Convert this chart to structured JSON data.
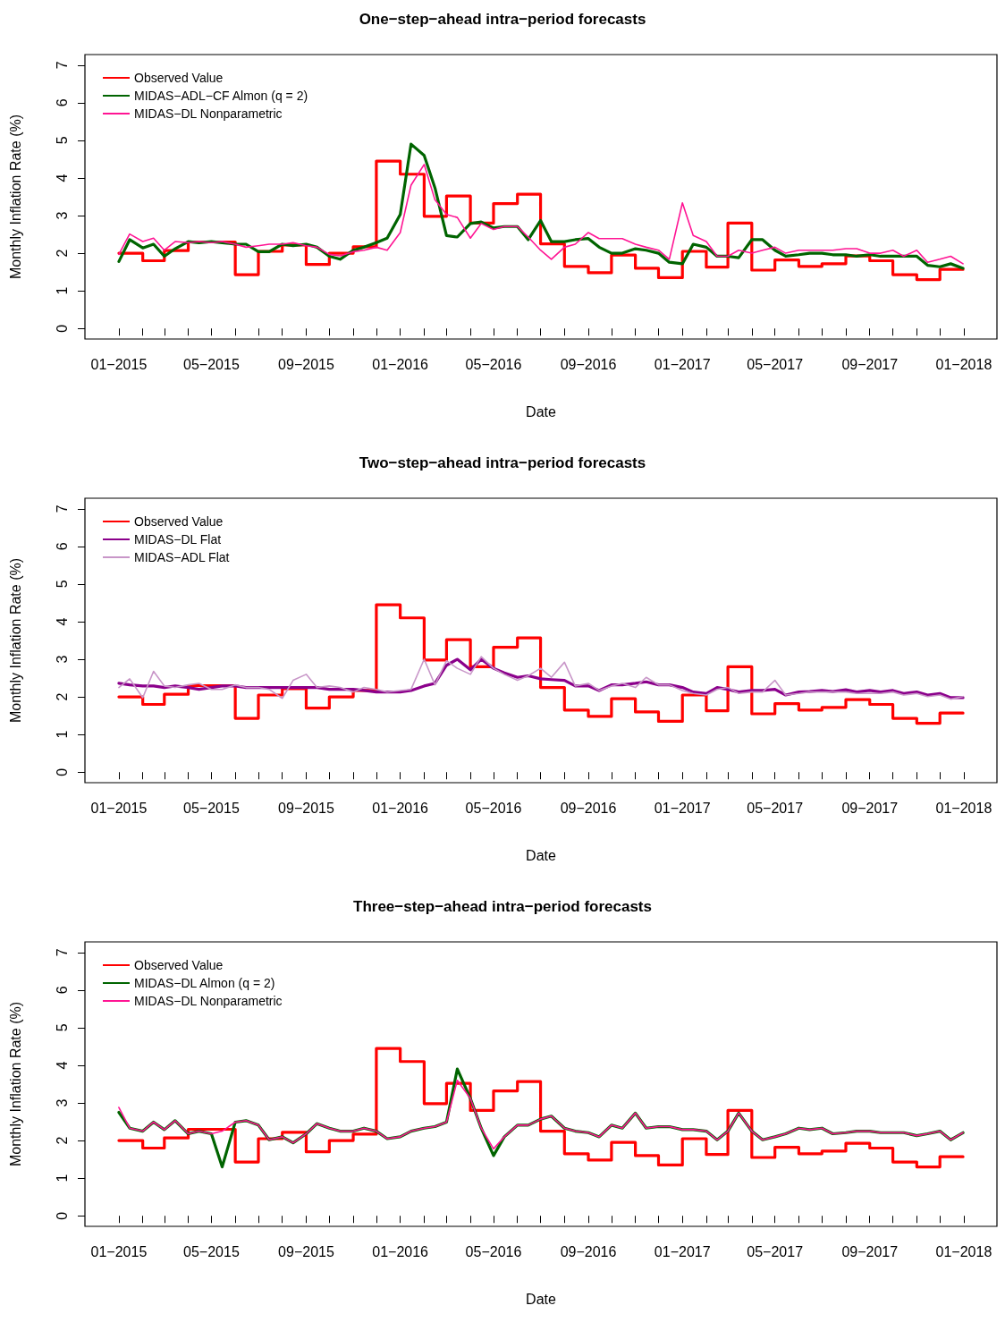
{
  "chart_data": [
    {
      "type": "line",
      "title": "One−step−ahead intra−period forecasts",
      "xlabel": "Date",
      "ylabel": "Monthly Inflation Rate (%)",
      "legend": "top left",
      "xlim": [
        "2014-11-18",
        "2018-02-13"
      ],
      "ylim": [
        -0.28,
        7.28
      ],
      "yticks": [
        0,
        1,
        2,
        3,
        4,
        5,
        6,
        7
      ],
      "xticks": [
        {
          "value": "2015-01-01",
          "label": "01−2015"
        },
        {
          "value": "2015-02-01",
          "label": null
        },
        {
          "value": "2015-03-01",
          "label": null
        },
        {
          "value": "2015-04-01",
          "label": null
        },
        {
          "value": "2015-05-01",
          "label": "05−2015"
        },
        {
          "value": "2015-06-01",
          "label": null
        },
        {
          "value": "2015-07-01",
          "label": null
        },
        {
          "value": "2015-08-01",
          "label": null
        },
        {
          "value": "2015-09-01",
          "label": "09−2015"
        },
        {
          "value": "2015-10-01",
          "label": null
        },
        {
          "value": "2015-11-01",
          "label": null
        },
        {
          "value": "2015-12-01",
          "label": null
        },
        {
          "value": "2016-01-01",
          "label": "01−2016"
        },
        {
          "value": "2016-02-01",
          "label": null
        },
        {
          "value": "2016-03-01",
          "label": null
        },
        {
          "value": "2016-04-01",
          "label": null
        },
        {
          "value": "2016-05-01",
          "label": "05−2016"
        },
        {
          "value": "2016-06-01",
          "label": null
        },
        {
          "value": "2016-07-01",
          "label": null
        },
        {
          "value": "2016-08-01",
          "label": null
        },
        {
          "value": "2016-09-01",
          "label": "09−2016"
        },
        {
          "value": "2016-10-01",
          "label": null
        },
        {
          "value": "2016-11-01",
          "label": null
        },
        {
          "value": "2016-12-01",
          "label": null
        },
        {
          "value": "2017-01-01",
          "label": "01−2017"
        },
        {
          "value": "2017-02-01",
          "label": null
        },
        {
          "value": "2017-03-01",
          "label": null
        },
        {
          "value": "2017-04-01",
          "label": null
        },
        {
          "value": "2017-05-01",
          "label": "05−2017"
        },
        {
          "value": "2017-06-01",
          "label": null
        },
        {
          "value": "2017-07-01",
          "label": null
        },
        {
          "value": "2017-08-01",
          "label": null
        },
        {
          "value": "2017-09-01",
          "label": "09−2017"
        },
        {
          "value": "2017-10-01",
          "label": null
        },
        {
          "value": "2017-11-01",
          "label": null
        },
        {
          "value": "2017-12-01",
          "label": null
        },
        {
          "value": "2018-01-01",
          "label": "01−2018"
        }
      ],
      "x": [
        "2015-01-01",
        "2015-01-15",
        "2015-02-01",
        "2015-02-15",
        "2015-03-01",
        "2015-03-15",
        "2015-04-01",
        "2015-04-15",
        "2015-05-01",
        "2015-05-15",
        "2015-06-01",
        "2015-06-15",
        "2015-07-01",
        "2015-07-15",
        "2015-08-01",
        "2015-08-15",
        "2015-09-01",
        "2015-09-15",
        "2015-10-01",
        "2015-10-15",
        "2015-11-01",
        "2015-11-15",
        "2015-12-01",
        "2015-12-15",
        "2016-01-01",
        "2016-01-15",
        "2016-02-01",
        "2016-02-15",
        "2016-03-01",
        "2016-03-15",
        "2016-04-01",
        "2016-04-15",
        "2016-05-01",
        "2016-05-15",
        "2016-06-01",
        "2016-06-15",
        "2016-07-01",
        "2016-07-15",
        "2016-08-01",
        "2016-08-15",
        "2016-09-01",
        "2016-09-15",
        "2016-10-01",
        "2016-10-15",
        "2016-11-01",
        "2016-11-15",
        "2016-12-01",
        "2016-12-15",
        "2017-01-01",
        "2017-01-15",
        "2017-02-01",
        "2017-02-15",
        "2017-03-01",
        "2017-03-15",
        "2017-04-01",
        "2017-04-15",
        "2017-05-01",
        "2017-05-15",
        "2017-06-01",
        "2017-06-15",
        "2017-07-01",
        "2017-07-15",
        "2017-08-01",
        "2017-08-15",
        "2017-09-01",
        "2017-09-15",
        "2017-10-01",
        "2017-10-15",
        "2017-11-01",
        "2017-11-15",
        "2017-12-01",
        "2017-12-15",
        "2017-12-31"
      ],
      "series": [
        {
          "name": "Observed Value",
          "type": "step",
          "color": "#ff0000",
          "x": [
            "2015-01-01",
            "2015-02-01",
            "2015-03-01",
            "2015-04-01",
            "2015-05-01",
            "2015-06-01",
            "2015-07-01",
            "2015-08-01",
            "2015-09-01",
            "2015-10-01",
            "2015-11-01",
            "2015-12-01",
            "2016-01-01",
            "2016-02-01",
            "2016-03-01",
            "2016-04-01",
            "2016-05-01",
            "2016-06-01",
            "2016-07-01",
            "2016-08-01",
            "2016-09-01",
            "2016-10-01",
            "2016-11-01",
            "2016-12-01",
            "2017-01-01",
            "2017-02-01",
            "2017-03-01",
            "2017-04-01",
            "2017-05-01",
            "2017-06-01",
            "2017-07-01",
            "2017-08-01",
            "2017-09-01",
            "2017-10-01",
            "2017-11-01",
            "2017-12-01",
            "2017-12-31"
          ],
          "values": [
            2.0,
            1.8,
            2.07,
            2.3,
            2.3,
            1.43,
            2.05,
            2.22,
            1.7,
            2.0,
            2.17,
            4.45,
            4.1,
            2.98,
            3.52,
            2.8,
            3.32,
            3.57,
            2.25,
            1.65,
            1.48,
            1.95,
            1.6,
            1.35,
            2.05,
            1.63,
            2.8,
            1.55,
            1.82,
            1.65,
            1.72,
            1.93,
            1.8,
            1.43,
            1.3,
            1.57,
            1.57
          ]
        },
        {
          "name": "MIDAS−ADL−CF Almon (q = 2)",
          "color": "#006400",
          "values": [
            1.78,
            2.36,
            2.14,
            2.24,
            1.92,
            2.12,
            2.31,
            2.28,
            2.31,
            2.28,
            2.24,
            2.24,
            2.04,
            2.04,
            2.24,
            2.2,
            2.24,
            2.16,
            1.92,
            1.84,
            2.08,
            2.16,
            2.28,
            2.4,
            3.03,
            4.9,
            4.6,
            3.74,
            2.47,
            2.43,
            2.79,
            2.83,
            2.67,
            2.71,
            2.71,
            2.36,
            2.87,
            2.31,
            2.31,
            2.36,
            2.39,
            2.16,
            2.0,
            2.0,
            2.12,
            2.08,
            2.0,
            1.76,
            1.72,
            2.24,
            2.16,
            1.92,
            1.92,
            1.88,
            2.36,
            2.36,
            2.08,
            1.92,
            1.96,
            2.0,
            2.0,
            1.96,
            1.96,
            1.92,
            1.96,
            1.92,
            1.92,
            1.92,
            1.92,
            1.68,
            1.64,
            1.72,
            1.6
          ]
        },
        {
          "name": "MIDAS−DL Nonparametric",
          "color": "#ff1493",
          "values": [
            1.97,
            2.51,
            2.31,
            2.4,
            2.08,
            2.31,
            2.28,
            2.31,
            2.28,
            2.31,
            2.24,
            2.16,
            2.2,
            2.24,
            2.24,
            2.28,
            2.2,
            2.16,
            1.97,
            1.93,
            2.04,
            2.08,
            2.16,
            2.08,
            2.55,
            3.81,
            4.36,
            3.42,
            3.03,
            2.95,
            2.4,
            2.79,
            2.63,
            2.71,
            2.71,
            2.43,
            2.08,
            1.84,
            2.16,
            2.24,
            2.55,
            2.39,
            2.39,
            2.39,
            2.24,
            2.16,
            2.08,
            1.84,
            3.34,
            2.47,
            2.31,
            1.92,
            1.92,
            2.08,
            2.0,
            2.08,
            2.16,
            2.0,
            2.08,
            2.08,
            2.08,
            2.08,
            2.12,
            2.12,
            2.0,
            2.0,
            2.08,
            1.92,
            2.08,
            1.76,
            1.84,
            1.92,
            1.72
          ]
        }
      ]
    },
    {
      "type": "line",
      "title": "Two−step−ahead intra−period forecasts",
      "xlabel": "Date",
      "ylabel": "Monthly Inflation Rate (%)",
      "legend": "top left",
      "xlim": [
        "2014-11-18",
        "2018-02-13"
      ],
      "ylim": [
        -0.28,
        7.28
      ],
      "yticks": [
        0,
        1,
        2,
        3,
        4,
        5,
        6,
        7
      ],
      "xticks": [
        {
          "value": "2015-01-01",
          "label": "01−2015"
        },
        {
          "value": "2015-02-01",
          "label": null
        },
        {
          "value": "2015-03-01",
          "label": null
        },
        {
          "value": "2015-04-01",
          "label": null
        },
        {
          "value": "2015-05-01",
          "label": "05−2015"
        },
        {
          "value": "2015-06-01",
          "label": null
        },
        {
          "value": "2015-07-01",
          "label": null
        },
        {
          "value": "2015-08-01",
          "label": null
        },
        {
          "value": "2015-09-01",
          "label": "09−2015"
        },
        {
          "value": "2015-10-01",
          "label": null
        },
        {
          "value": "2015-11-01",
          "label": null
        },
        {
          "value": "2015-12-01",
          "label": null
        },
        {
          "value": "2016-01-01",
          "label": "01−2016"
        },
        {
          "value": "2016-02-01",
          "label": null
        },
        {
          "value": "2016-03-01",
          "label": null
        },
        {
          "value": "2016-04-01",
          "label": null
        },
        {
          "value": "2016-05-01",
          "label": "05−2016"
        },
        {
          "value": "2016-06-01",
          "label": null
        },
        {
          "value": "2016-07-01",
          "label": null
        },
        {
          "value": "2016-08-01",
          "label": null
        },
        {
          "value": "2016-09-01",
          "label": "09−2016"
        },
        {
          "value": "2016-10-01",
          "label": null
        },
        {
          "value": "2016-11-01",
          "label": null
        },
        {
          "value": "2016-12-01",
          "label": null
        },
        {
          "value": "2017-01-01",
          "label": "01−2017"
        },
        {
          "value": "2017-02-01",
          "label": null
        },
        {
          "value": "2017-03-01",
          "label": null
        },
        {
          "value": "2017-04-01",
          "label": null
        },
        {
          "value": "2017-05-01",
          "label": "05−2017"
        },
        {
          "value": "2017-06-01",
          "label": null
        },
        {
          "value": "2017-07-01",
          "label": null
        },
        {
          "value": "2017-08-01",
          "label": null
        },
        {
          "value": "2017-09-01",
          "label": "09−2017"
        },
        {
          "value": "2017-10-01",
          "label": null
        },
        {
          "value": "2017-11-01",
          "label": null
        },
        {
          "value": "2017-12-01",
          "label": null
        },
        {
          "value": "2018-01-01",
          "label": "01−2018"
        }
      ],
      "x": [
        "2015-01-01",
        "2015-01-15",
        "2015-02-01",
        "2015-02-15",
        "2015-03-01",
        "2015-03-15",
        "2015-04-01",
        "2015-04-15",
        "2015-05-01",
        "2015-05-15",
        "2015-06-01",
        "2015-06-15",
        "2015-07-01",
        "2015-07-15",
        "2015-08-01",
        "2015-08-15",
        "2015-09-01",
        "2015-09-15",
        "2015-10-01",
        "2015-10-15",
        "2015-11-01",
        "2015-11-15",
        "2015-12-01",
        "2015-12-15",
        "2016-01-01",
        "2016-01-15",
        "2016-02-01",
        "2016-02-15",
        "2016-03-01",
        "2016-03-15",
        "2016-04-01",
        "2016-04-15",
        "2016-05-01",
        "2016-05-15",
        "2016-06-01",
        "2016-06-15",
        "2016-07-01",
        "2016-07-15",
        "2016-08-01",
        "2016-08-15",
        "2016-09-01",
        "2016-09-15",
        "2016-10-01",
        "2016-10-15",
        "2016-11-01",
        "2016-11-15",
        "2016-12-01",
        "2016-12-15",
        "2017-01-01",
        "2017-01-15",
        "2017-02-01",
        "2017-02-15",
        "2017-03-01",
        "2017-03-15",
        "2017-04-01",
        "2017-04-15",
        "2017-05-01",
        "2017-05-15",
        "2017-06-01",
        "2017-06-15",
        "2017-07-01",
        "2017-07-15",
        "2017-08-01",
        "2017-08-15",
        "2017-09-01",
        "2017-09-15",
        "2017-10-01",
        "2017-10-15",
        "2017-11-01",
        "2017-11-15",
        "2017-12-01",
        "2017-12-15",
        "2017-12-31"
      ],
      "series": [
        {
          "name": "Observed Value",
          "type": "step",
          "color": "#ff0000",
          "x": [
            "2015-01-01",
            "2015-02-01",
            "2015-03-01",
            "2015-04-01",
            "2015-05-01",
            "2015-06-01",
            "2015-07-01",
            "2015-08-01",
            "2015-09-01",
            "2015-10-01",
            "2015-11-01",
            "2015-12-01",
            "2016-01-01",
            "2016-02-01",
            "2016-03-01",
            "2016-04-01",
            "2016-05-01",
            "2016-06-01",
            "2016-07-01",
            "2016-08-01",
            "2016-09-01",
            "2016-10-01",
            "2016-11-01",
            "2016-12-01",
            "2017-01-01",
            "2017-02-01",
            "2017-03-01",
            "2017-04-01",
            "2017-05-01",
            "2017-06-01",
            "2017-07-01",
            "2017-08-01",
            "2017-09-01",
            "2017-10-01",
            "2017-11-01",
            "2017-12-01",
            "2017-12-31"
          ],
          "values": [
            2.0,
            1.8,
            2.07,
            2.3,
            2.3,
            1.43,
            2.05,
            2.22,
            1.7,
            2.0,
            2.17,
            4.45,
            4.1,
            2.98,
            3.52,
            2.8,
            3.32,
            3.57,
            2.25,
            1.65,
            1.48,
            1.95,
            1.6,
            1.35,
            2.05,
            1.63,
            2.8,
            1.55,
            1.82,
            1.65,
            1.72,
            1.93,
            1.8,
            1.43,
            1.3,
            1.57,
            1.57
          ]
        },
        {
          "name": "MIDAS−DL Flat",
          "color": "#8b008b",
          "values": [
            2.36,
            2.32,
            2.29,
            2.29,
            2.25,
            2.29,
            2.25,
            2.2,
            2.25,
            2.29,
            2.29,
            2.25,
            2.25,
            2.25,
            2.25,
            2.25,
            2.25,
            2.25,
            2.2,
            2.2,
            2.2,
            2.17,
            2.13,
            2.13,
            2.13,
            2.17,
            2.29,
            2.36,
            2.84,
            3.0,
            2.72,
            3.0,
            2.76,
            2.64,
            2.52,
            2.56,
            2.48,
            2.46,
            2.44,
            2.29,
            2.29,
            2.17,
            2.32,
            2.32,
            2.36,
            2.4,
            2.32,
            2.32,
            2.25,
            2.13,
            2.09,
            2.25,
            2.2,
            2.13,
            2.17,
            2.17,
            2.2,
            2.05,
            2.13,
            2.14,
            2.17,
            2.14,
            2.19,
            2.13,
            2.17,
            2.13,
            2.17,
            2.09,
            2.13,
            2.05,
            2.09,
            1.98,
            1.98
          ]
        },
        {
          "name": "MIDAS−ADL Flat",
          "color": "#c896c8",
          "values": [
            2.25,
            2.48,
            1.98,
            2.68,
            2.29,
            2.25,
            2.32,
            2.36,
            2.2,
            2.2,
            2.32,
            2.25,
            2.25,
            2.2,
            1.96,
            2.44,
            2.6,
            2.25,
            2.29,
            2.25,
            2.13,
            2.25,
            2.2,
            2.13,
            2.17,
            2.2,
            3.0,
            2.32,
            2.96,
            2.76,
            2.6,
            3.07,
            2.76,
            2.6,
            2.44,
            2.56,
            2.76,
            2.52,
            2.92,
            2.29,
            2.36,
            2.17,
            2.29,
            2.36,
            2.25,
            2.52,
            2.32,
            2.32,
            2.17,
            2.09,
            2.05,
            2.2,
            2.25,
            2.09,
            2.13,
            2.13,
            2.44,
            2.05,
            2.09,
            2.13,
            2.13,
            2.13,
            2.13,
            2.09,
            2.09,
            2.09,
            2.13,
            2.05,
            2.09,
            2.01,
            2.05,
            1.94,
            2.01
          ]
        }
      ]
    },
    {
      "type": "line",
      "title": "Three−step−ahead intra−period forecasts",
      "xlabel": "Date",
      "ylabel": "Monthly Inflation Rate (%)",
      "legend": "top left",
      "xlim": [
        "2014-11-18",
        "2018-02-13"
      ],
      "ylim": [
        -0.28,
        7.28
      ],
      "yticks": [
        0,
        1,
        2,
        3,
        4,
        5,
        6,
        7
      ],
      "xticks": [
        {
          "value": "2015-01-01",
          "label": "01−2015"
        },
        {
          "value": "2015-02-01",
          "label": null
        },
        {
          "value": "2015-03-01",
          "label": null
        },
        {
          "value": "2015-04-01",
          "label": null
        },
        {
          "value": "2015-05-01",
          "label": "05−2015"
        },
        {
          "value": "2015-06-01",
          "label": null
        },
        {
          "value": "2015-07-01",
          "label": null
        },
        {
          "value": "2015-08-01",
          "label": null
        },
        {
          "value": "2015-09-01",
          "label": "09−2015"
        },
        {
          "value": "2015-10-01",
          "label": null
        },
        {
          "value": "2015-11-01",
          "label": null
        },
        {
          "value": "2015-12-01",
          "label": null
        },
        {
          "value": "2016-01-01",
          "label": "01−2016"
        },
        {
          "value": "2016-02-01",
          "label": null
        },
        {
          "value": "2016-03-01",
          "label": null
        },
        {
          "value": "2016-04-01",
          "label": null
        },
        {
          "value": "2016-05-01",
          "label": "05−2016"
        },
        {
          "value": "2016-06-01",
          "label": null
        },
        {
          "value": "2016-07-01",
          "label": null
        },
        {
          "value": "2016-08-01",
          "label": null
        },
        {
          "value": "2016-09-01",
          "label": "09−2016"
        },
        {
          "value": "2016-10-01",
          "label": null
        },
        {
          "value": "2016-11-01",
          "label": null
        },
        {
          "value": "2016-12-01",
          "label": null
        },
        {
          "value": "2017-01-01",
          "label": "01−2017"
        },
        {
          "value": "2017-02-01",
          "label": null
        },
        {
          "value": "2017-03-01",
          "label": null
        },
        {
          "value": "2017-04-01",
          "label": null
        },
        {
          "value": "2017-05-01",
          "label": "05−2017"
        },
        {
          "value": "2017-06-01",
          "label": null
        },
        {
          "value": "2017-07-01",
          "label": null
        },
        {
          "value": "2017-08-01",
          "label": null
        },
        {
          "value": "2017-09-01",
          "label": "09−2017"
        },
        {
          "value": "2017-10-01",
          "label": null
        },
        {
          "value": "2017-11-01",
          "label": null
        },
        {
          "value": "2017-12-01",
          "label": null
        },
        {
          "value": "2018-01-01",
          "label": "01−2018"
        }
      ],
      "x": [
        "2015-01-01",
        "2015-01-15",
        "2015-02-01",
        "2015-02-15",
        "2015-03-01",
        "2015-03-15",
        "2015-04-01",
        "2015-04-15",
        "2015-05-01",
        "2015-05-15",
        "2015-06-01",
        "2015-06-15",
        "2015-07-01",
        "2015-07-15",
        "2015-08-01",
        "2015-08-15",
        "2015-09-01",
        "2015-09-15",
        "2015-10-01",
        "2015-10-15",
        "2015-11-01",
        "2015-11-15",
        "2015-12-01",
        "2015-12-15",
        "2016-01-01",
        "2016-01-15",
        "2016-02-01",
        "2016-02-15",
        "2016-03-01",
        "2016-03-15",
        "2016-04-01",
        "2016-04-15",
        "2016-05-01",
        "2016-05-15",
        "2016-06-01",
        "2016-06-15",
        "2016-07-01",
        "2016-07-15",
        "2016-08-01",
        "2016-08-15",
        "2016-09-01",
        "2016-09-15",
        "2016-10-01",
        "2016-10-15",
        "2016-11-01",
        "2016-11-15",
        "2016-12-01",
        "2016-12-15",
        "2017-01-01",
        "2017-01-15",
        "2017-02-01",
        "2017-02-15",
        "2017-03-01",
        "2017-03-15",
        "2017-04-01",
        "2017-04-15",
        "2017-05-01",
        "2017-05-15",
        "2017-06-01",
        "2017-06-15",
        "2017-07-01",
        "2017-07-15",
        "2017-08-01",
        "2017-08-15",
        "2017-09-01",
        "2017-09-15",
        "2017-10-01",
        "2017-10-15",
        "2017-11-01",
        "2017-11-15",
        "2017-12-01",
        "2017-12-15",
        "2017-12-31"
      ],
      "series": [
        {
          "name": "Observed Value",
          "type": "step",
          "color": "#ff0000",
          "x": [
            "2015-01-01",
            "2015-02-01",
            "2015-03-01",
            "2015-04-01",
            "2015-05-01",
            "2015-06-01",
            "2015-07-01",
            "2015-08-01",
            "2015-09-01",
            "2015-10-01",
            "2015-11-01",
            "2015-12-01",
            "2016-01-01",
            "2016-02-01",
            "2016-03-01",
            "2016-04-01",
            "2016-05-01",
            "2016-06-01",
            "2016-07-01",
            "2016-08-01",
            "2016-09-01",
            "2016-10-01",
            "2016-11-01",
            "2016-12-01",
            "2017-01-01",
            "2017-02-01",
            "2017-03-01",
            "2017-04-01",
            "2017-05-01",
            "2017-06-01",
            "2017-07-01",
            "2017-08-01",
            "2017-09-01",
            "2017-10-01",
            "2017-11-01",
            "2017-12-01",
            "2017-12-31"
          ],
          "values": [
            2.0,
            1.8,
            2.07,
            2.3,
            2.3,
            1.43,
            2.05,
            2.22,
            1.7,
            2.0,
            2.17,
            4.45,
            4.1,
            2.98,
            3.52,
            2.8,
            3.32,
            3.57,
            2.25,
            1.65,
            1.48,
            1.95,
            1.6,
            1.35,
            2.05,
            1.63,
            2.8,
            1.55,
            1.82,
            1.65,
            1.72,
            1.93,
            1.8,
            1.43,
            1.3,
            1.57,
            1.57
          ]
        },
        {
          "name": "MIDAS−DL Almon (q = 2)",
          "color": "#006400",
          "values": [
            2.75,
            2.33,
            2.25,
            2.49,
            2.29,
            2.53,
            2.18,
            2.25,
            2.18,
            1.3,
            2.49,
            2.53,
            2.41,
            2.02,
            2.1,
            1.94,
            2.18,
            2.45,
            2.33,
            2.25,
            2.25,
            2.33,
            2.25,
            2.05,
            2.1,
            2.25,
            2.33,
            2.37,
            2.49,
            3.9,
            3.12,
            2.33,
            1.6,
            2.1,
            2.41,
            2.41,
            2.57,
            2.65,
            2.33,
            2.25,
            2.21,
            2.1,
            2.41,
            2.33,
            2.73,
            2.33,
            2.37,
            2.37,
            2.29,
            2.29,
            2.25,
            2.02,
            2.25,
            2.73,
            2.25,
            2.02,
            2.1,
            2.18,
            2.33,
            2.29,
            2.33,
            2.18,
            2.21,
            2.25,
            2.25,
            2.21,
            2.21,
            2.21,
            2.13,
            2.18,
            2.25,
            2.02,
            2.21
          ]
        },
        {
          "name": "MIDAS−DL Nonparametric",
          "color": "#ff1493",
          "values": [
            2.88,
            2.33,
            2.25,
            2.49,
            2.29,
            2.53,
            2.18,
            2.25,
            2.18,
            2.25,
            2.49,
            2.53,
            2.41,
            2.02,
            2.1,
            1.94,
            2.18,
            2.45,
            2.33,
            2.25,
            2.25,
            2.33,
            2.25,
            2.05,
            2.1,
            2.25,
            2.33,
            2.37,
            2.49,
            3.6,
            3.12,
            2.33,
            1.78,
            2.1,
            2.41,
            2.41,
            2.57,
            2.65,
            2.33,
            2.25,
            2.21,
            2.1,
            2.41,
            2.33,
            2.73,
            2.33,
            2.37,
            2.37,
            2.29,
            2.29,
            2.25,
            2.02,
            2.25,
            2.73,
            2.25,
            2.02,
            2.1,
            2.18,
            2.33,
            2.29,
            2.33,
            2.18,
            2.21,
            2.25,
            2.25,
            2.21,
            2.21,
            2.21,
            2.13,
            2.18,
            2.25,
            2.02,
            2.21
          ]
        }
      ]
    }
  ]
}
